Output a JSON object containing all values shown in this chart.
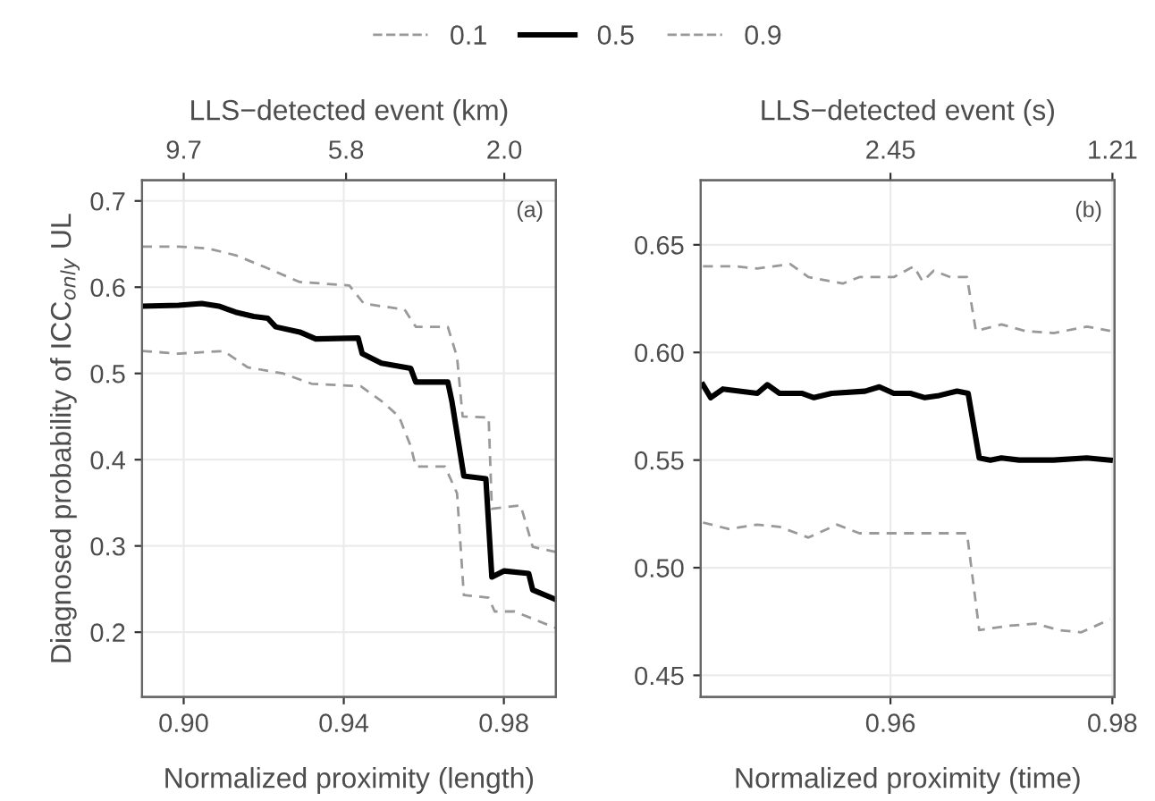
{
  "chart_data": [
    {
      "type": "line",
      "xlabel": "Normalized proximity (length)",
      "ylabel": "Diagnosed probability of ICC$_{only}$ UL",
      "x2label": "LLS−detected event (km)",
      "annotations": [
        "(a)"
      ],
      "legend": "top",
      "grid": true,
      "xlim": [
        0.8896,
        0.993
      ],
      "xticks": [
        {
          "value": 0.9,
          "label": "0.90"
        },
        0.94,
        0.98
      ],
      "x2lim": [
        10.7,
        0.76
      ],
      "x2ticks": [
        9.7,
        5.8,
        {
          "value": 2.0,
          "label": "2.0"
        }
      ],
      "ylim": [
        0.125,
        0.724
      ],
      "yticks": [
        0.2,
        0.3,
        0.4,
        0.5,
        0.6,
        0.7
      ],
      "series": [
        {
          "name": "0.1",
          "color": "#999999",
          "line_style": "dashed",
          "x": [
            0.8896,
            0.8987,
            0.91,
            0.916,
            0.9248,
            0.932,
            0.9443,
            0.9494,
            0.9538,
            0.9567,
            0.958,
            0.9653,
            0.9683,
            0.97,
            0.9762,
            0.9777,
            0.9827,
            0.9929
          ],
          "values": [
            0.526,
            0.523,
            0.526,
            0.507,
            0.5,
            0.488,
            0.485,
            0.468,
            0.45,
            0.416,
            0.392,
            0.392,
            0.361,
            0.243,
            0.24,
            0.224,
            0.224,
            0.205
          ]
        },
        {
          "name": "0.5",
          "color": "#000000",
          "line_style": "solid",
          "x": [
            0.8896,
            0.8987,
            0.9045,
            0.9088,
            0.913,
            0.9175,
            0.921,
            0.923,
            0.929,
            0.933,
            0.9436,
            0.9446,
            0.9494,
            0.9567,
            0.958,
            0.966,
            0.967,
            0.97,
            0.9755,
            0.977,
            0.98,
            0.9862,
            0.9872,
            0.9929
          ],
          "values": [
            0.578,
            0.579,
            0.581,
            0.578,
            0.571,
            0.566,
            0.564,
            0.554,
            0.548,
            0.54,
            0.541,
            0.523,
            0.512,
            0.506,
            0.49,
            0.49,
            0.468,
            0.381,
            0.378,
            0.264,
            0.271,
            0.268,
            0.249,
            0.238
          ]
        },
        {
          "name": "0.9",
          "color": "#999999",
          "line_style": "dashed",
          "x": [
            0.8896,
            0.8987,
            0.906,
            0.913,
            0.9204,
            0.929,
            0.9414,
            0.945,
            0.9552,
            0.958,
            0.966,
            0.9683,
            0.9697,
            0.9762,
            0.977,
            0.9842,
            0.9872,
            0.9929
          ],
          "values": [
            0.647,
            0.647,
            0.645,
            0.637,
            0.623,
            0.606,
            0.602,
            0.581,
            0.574,
            0.554,
            0.554,
            0.519,
            0.45,
            0.449,
            0.343,
            0.347,
            0.299,
            0.293
          ]
        }
      ]
    },
    {
      "type": "line",
      "xlabel": "Normalized proximity (time)",
      "x2label": "LLS−detected event (s)",
      "annotations": [
        "(b)"
      ],
      "grid": true,
      "xlim": [
        0.9429,
        0.9802
      ],
      "xticks": [
        0.96,
        0.98
      ],
      "x2lim": [
        3.51,
        1.198
      ],
      "x2ticks": [
        2.45,
        1.21
      ],
      "ylim": [
        0.44,
        0.68
      ],
      "yticks": [
        0.45,
        {
          "value": 0.5,
          "label": "0.50"
        },
        0.55,
        {
          "value": 0.6,
          "label": "0.60"
        },
        0.65
      ],
      "series": [
        {
          "name": "0.1",
          "color": "#999999",
          "line_style": "dashed",
          "x": [
            0.9431,
            0.9454,
            0.948,
            0.95,
            0.9526,
            0.9552,
            0.9572,
            0.9603,
            0.9629,
            0.9669,
            0.968,
            0.9706,
            0.9731,
            0.9752,
            0.9772,
            0.9798
          ],
          "values": [
            0.521,
            0.518,
            0.52,
            0.519,
            0.514,
            0.52,
            0.516,
            0.516,
            0.516,
            0.516,
            0.471,
            0.473,
            0.474,
            0.471,
            0.47,
            0.476
          ]
        },
        {
          "name": "0.5",
          "color": "#000000",
          "line_style": "solid",
          "x": [
            0.9431,
            0.9438,
            0.9449,
            0.948,
            0.9489,
            0.95,
            0.952,
            0.9531,
            0.9547,
            0.9577,
            0.959,
            0.9603,
            0.9618,
            0.9631,
            0.9644,
            0.966,
            0.967,
            0.968,
            0.969,
            0.97,
            0.9716,
            0.9747,
            0.9777,
            0.9798
          ],
          "values": [
            0.585,
            0.579,
            0.583,
            0.581,
            0.585,
            0.581,
            0.581,
            0.579,
            0.581,
            0.582,
            0.584,
            0.581,
            0.581,
            0.579,
            0.58,
            0.582,
            0.581,
            0.551,
            0.55,
            0.551,
            0.55,
            0.55,
            0.551,
            0.55
          ]
        },
        {
          "name": "0.9",
          "color": "#999999",
          "line_style": "dashed",
          "x": [
            0.9431,
            0.946,
            0.948,
            0.951,
            0.9526,
            0.9557,
            0.9572,
            0.9603,
            0.9621,
            0.9629,
            0.9639,
            0.9654,
            0.9669,
            0.9677,
            0.97,
            0.9721,
            0.9747,
            0.9777,
            0.9798
          ],
          "values": [
            0.64,
            0.64,
            0.639,
            0.641,
            0.635,
            0.632,
            0.635,
            0.635,
            0.64,
            0.633,
            0.638,
            0.635,
            0.635,
            0.61,
            0.613,
            0.61,
            0.609,
            0.612,
            0.61
          ]
        }
      ]
    }
  ]
}
